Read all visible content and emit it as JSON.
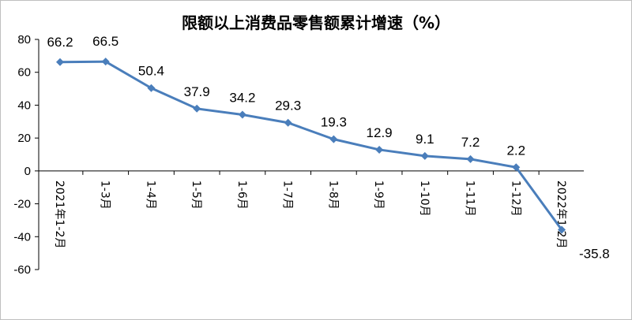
{
  "chart_data": {
    "type": "line",
    "title": "限额以上消费品零售额累计增速（%）",
    "xlabel": "",
    "ylabel": "",
    "categories": [
      "2021年1-2月",
      "1-3月",
      "1-4月",
      "1-5月",
      "1-6月",
      "1-7月",
      "1-8月",
      "1-9月",
      "1-10月",
      "1-11月",
      "1-12月",
      "2022年1-2月"
    ],
    "values": [
      66.2,
      66.5,
      50.4,
      37.9,
      34.2,
      29.3,
      19.3,
      12.9,
      9.1,
      7.2,
      2.2,
      -35.8
    ],
    "value_labels": [
      "66.2",
      "66.5",
      "50.4",
      "37.9",
      "34.2",
      "29.3",
      "19.3",
      "12.9",
      "9.1",
      "7.2",
      "2.2",
      "-35.8"
    ],
    "x_tick_labels": [
      [
        "2021",
        "年",
        "1-2",
        "月"
      ],
      [
        "1-3",
        "月"
      ],
      [
        "1-4",
        "月"
      ],
      [
        "1-5",
        "月"
      ],
      [
        "1-6",
        "月"
      ],
      [
        "1-7",
        "月"
      ],
      [
        "1-8",
        "月"
      ],
      [
        "1-9",
        "月"
      ],
      [
        "1-10",
        "月"
      ],
      [
        "1-11",
        "月"
      ],
      [
        "1-12",
        "月"
      ],
      [
        "2022",
        "年",
        "1-2",
        "月"
      ]
    ],
    "y_ticks": [
      80,
      60,
      40,
      20,
      0,
      -20,
      -40,
      -60
    ],
    "y_tick_labels": [
      "80",
      "60",
      "40",
      "20",
      "0",
      "-20",
      "-40",
      "-60"
    ],
    "ylim": [
      -60,
      80
    ],
    "grid": false,
    "legend": "none",
    "line_color": "#4a7ebb"
  }
}
